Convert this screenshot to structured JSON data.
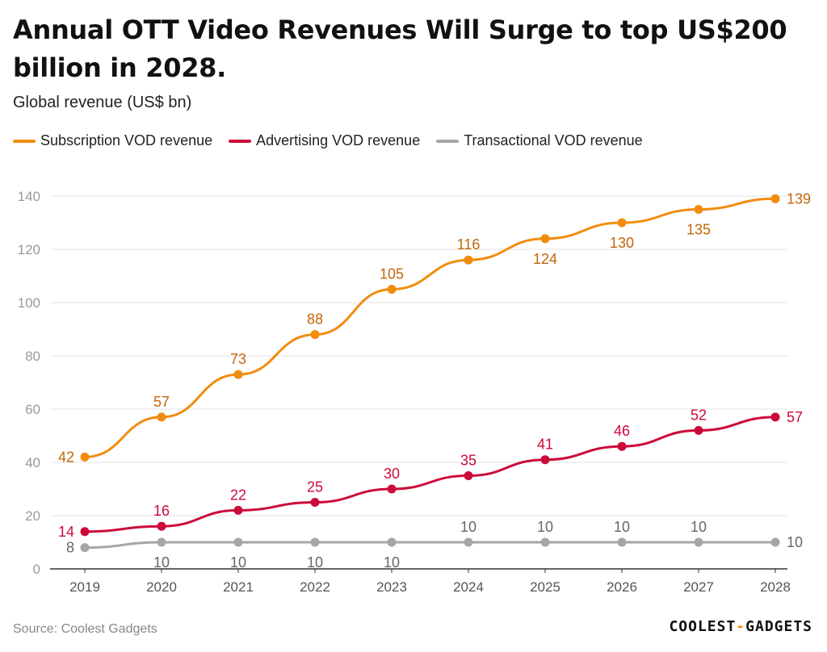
{
  "title": "Annual OTT Video Revenues Will Surge to top US$200 billion in 2028.",
  "subtitle": "Global revenue (US$ bn)",
  "source": "Source: Coolest Gadgets",
  "brand": {
    "left": "COOLEST",
    "sep": "-",
    "right": "GADGETS"
  },
  "chart_data": {
    "type": "line",
    "title": "Annual OTT Video Revenues Will Surge to top US$200 billion in 2028.",
    "ylabel": "Global revenue (US$ bn)",
    "xlabel": "",
    "ylim": [
      0,
      140
    ],
    "yticks": [
      0,
      20,
      40,
      60,
      80,
      100,
      120,
      140
    ],
    "grid": true,
    "legend": "top-left",
    "x": [
      "2019",
      "2020",
      "2021",
      "2022",
      "2023",
      "2024",
      "2025",
      "2026",
      "2027",
      "2028"
    ],
    "series": [
      {
        "name": "Subscription VOD revenue",
        "color": "#f28c0f",
        "label_color": "#c4650a",
        "values": [
          42,
          57,
          73,
          88,
          105,
          116,
          124,
          130,
          135,
          139
        ],
        "label_pos": [
          "left",
          "above",
          "above",
          "above",
          "above",
          "above",
          "below",
          "below",
          "below",
          "right"
        ]
      },
      {
        "name": "Advertising VOD revenue",
        "color": "#cc0a3a",
        "label_color": "#cc0a3a",
        "values": [
          14,
          16,
          22,
          25,
          30,
          35,
          41,
          46,
          52,
          57
        ],
        "label_pos": [
          "left",
          "above",
          "above",
          "above",
          "above",
          "above",
          "above",
          "above",
          "above",
          "right"
        ]
      },
      {
        "name": "Transactional VOD revenue",
        "color": "#a6a6a6",
        "label_color": "#666666",
        "values": [
          8,
          10,
          10,
          10,
          10,
          10,
          10,
          10,
          10,
          10
        ],
        "label_pos": [
          "left",
          "below",
          "below",
          "below",
          "below",
          "above",
          "above",
          "above",
          "above",
          "right"
        ]
      }
    ]
  }
}
